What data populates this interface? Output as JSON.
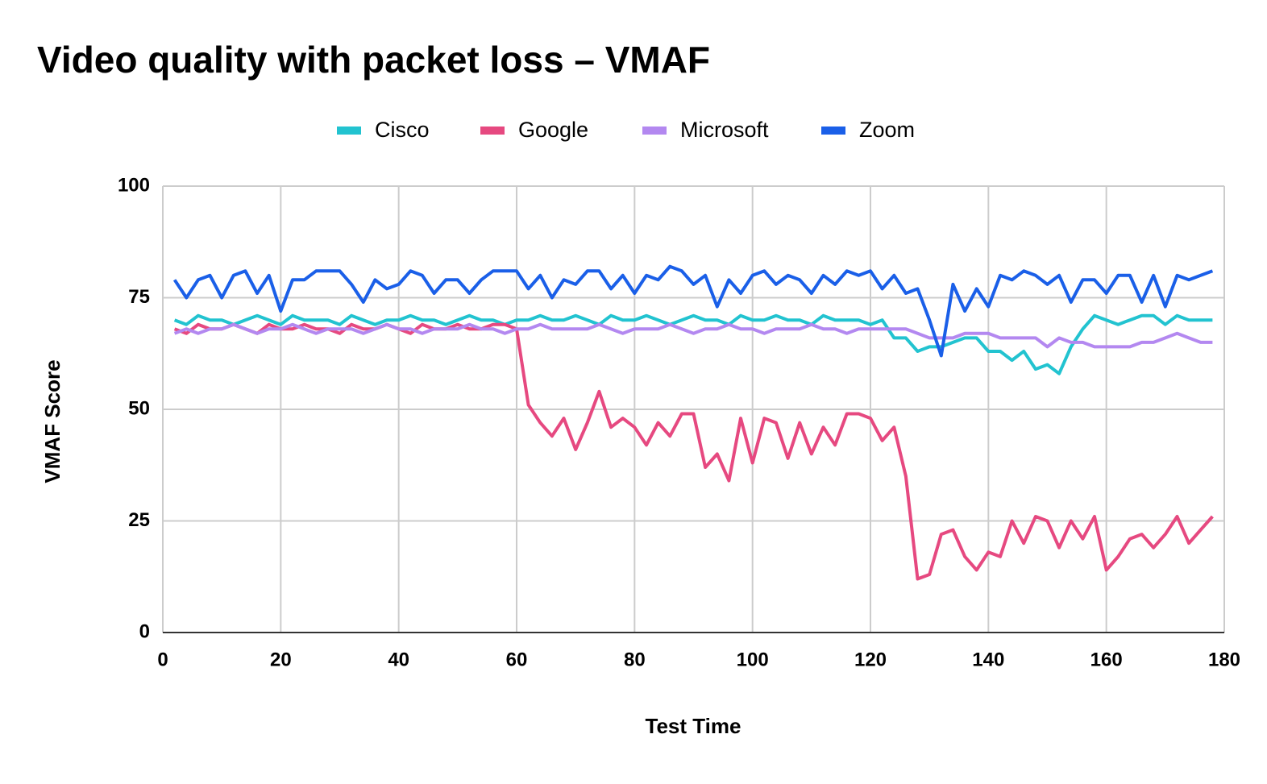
{
  "chart_data": {
    "type": "line",
    "title": "Video quality with packet loss – VMAF",
    "x_label": "Test Time",
    "y_label": "VMAF Score",
    "xlim": [
      0,
      180
    ],
    "xticks": [
      0,
      20,
      40,
      60,
      80,
      100,
      120,
      140,
      160,
      180
    ],
    "ylim": [
      0,
      100
    ],
    "yticks": [
      0,
      25,
      50,
      75,
      100
    ],
    "grid": true,
    "legend": "top",
    "x": [
      2,
      4,
      6,
      8,
      10,
      12,
      14,
      16,
      18,
      20,
      22,
      24,
      26,
      28,
      30,
      32,
      34,
      36,
      38,
      40,
      42,
      44,
      46,
      48,
      50,
      52,
      54,
      56,
      58,
      60,
      62,
      64,
      66,
      68,
      70,
      72,
      74,
      76,
      78,
      80,
      82,
      84,
      86,
      88,
      90,
      92,
      94,
      96,
      98,
      100,
      102,
      104,
      106,
      108,
      110,
      112,
      114,
      116,
      118,
      120,
      122,
      124,
      126,
      128,
      130,
      132,
      134,
      136,
      138,
      140,
      142,
      144,
      146,
      148,
      150,
      152,
      154,
      156,
      158,
      160,
      162,
      164,
      166,
      168,
      170,
      172,
      174,
      176,
      178
    ],
    "series": [
      {
        "name": "Cisco",
        "color": "#22c3d0",
        "values": [
          70,
          69,
          71,
          70,
          70,
          69,
          70,
          71,
          70,
          69,
          71,
          70,
          70,
          70,
          69,
          71,
          70,
          69,
          70,
          70,
          71,
          70,
          70,
          69,
          70,
          71,
          70,
          70,
          69,
          70,
          70,
          71,
          70,
          70,
          71,
          70,
          69,
          71,
          70,
          70,
          71,
          70,
          69,
          70,
          71,
          70,
          70,
          69,
          71,
          70,
          70,
          71,
          70,
          70,
          69,
          71,
          70,
          70,
          70,
          69,
          70,
          66,
          66,
          63,
          64,
          64,
          65,
          66,
          66,
          63,
          63,
          61,
          63,
          59,
          60,
          58,
          64,
          68,
          71,
          70,
          69,
          70,
          71,
          71,
          69,
          71,
          70,
          70,
          70
        ]
      },
      {
        "name": "Google",
        "color": "#e64980",
        "values": [
          68,
          67,
          69,
          68,
          68,
          69,
          68,
          67,
          69,
          68,
          68,
          69,
          68,
          68,
          67,
          69,
          68,
          68,
          69,
          68,
          67,
          69,
          68,
          68,
          69,
          68,
          68,
          69,
          69,
          68,
          51,
          47,
          44,
          48,
          41,
          47,
          54,
          46,
          48,
          46,
          42,
          47,
          44,
          49,
          49,
          37,
          40,
          34,
          48,
          38,
          48,
          47,
          39,
          47,
          40,
          46,
          42,
          49,
          49,
          48,
          43,
          46,
          35,
          12,
          13,
          22,
          23,
          17,
          14,
          18,
          17,
          25,
          20,
          26,
          25,
          19,
          25,
          21,
          26,
          14,
          17,
          21,
          22,
          19,
          22,
          26,
          20,
          23,
          26
        ]
      },
      {
        "name": "Microsoft",
        "color": "#b388f0",
        "values": [
          67,
          68,
          67,
          68,
          68,
          69,
          68,
          67,
          68,
          68,
          69,
          68,
          67,
          68,
          68,
          68,
          67,
          68,
          69,
          68,
          68,
          67,
          68,
          68,
          68,
          69,
          68,
          68,
          67,
          68,
          68,
          69,
          68,
          68,
          68,
          68,
          69,
          68,
          67,
          68,
          68,
          68,
          69,
          68,
          67,
          68,
          68,
          69,
          68,
          68,
          67,
          68,
          68,
          68,
          69,
          68,
          68,
          67,
          68,
          68,
          68,
          68,
          68,
          67,
          66,
          66,
          66,
          67,
          67,
          67,
          66,
          66,
          66,
          66,
          64,
          66,
          65,
          65,
          64,
          64,
          64,
          64,
          65,
          65,
          66,
          67,
          66,
          65,
          65
        ]
      },
      {
        "name": "Zoom",
        "color": "#1a5fe8",
        "values": [
          79,
          75,
          79,
          80,
          75,
          80,
          81,
          76,
          80,
          72,
          79,
          79,
          81,
          81,
          81,
          78,
          74,
          79,
          77,
          78,
          81,
          80,
          76,
          79,
          79,
          76,
          79,
          81,
          81,
          81,
          77,
          80,
          75,
          79,
          78,
          81,
          81,
          77,
          80,
          76,
          80,
          79,
          82,
          81,
          78,
          80,
          73,
          79,
          76,
          80,
          81,
          78,
          80,
          79,
          76,
          80,
          78,
          81,
          80,
          81,
          77,
          80,
          76,
          77,
          70,
          62,
          78,
          72,
          77,
          73,
          80,
          79,
          81,
          80,
          78,
          80,
          74,
          79,
          79,
          76,
          80,
          80,
          74,
          80,
          73,
          80,
          79,
          80,
          81
        ]
      }
    ]
  }
}
